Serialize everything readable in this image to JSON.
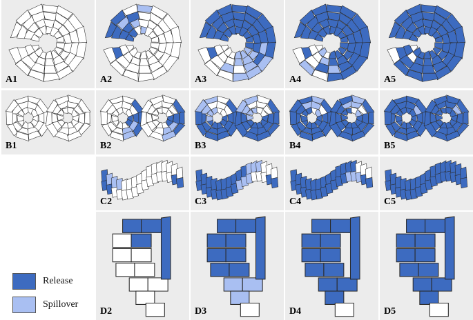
{
  "panels": [
    {
      "label": "A1"
    },
    {
      "label": "A2"
    },
    {
      "label": "A3"
    },
    {
      "label": "A4"
    },
    {
      "label": "A5"
    },
    {
      "label": "B1"
    },
    {
      "label": "B2"
    },
    {
      "label": "B3"
    },
    {
      "label": "B4"
    },
    {
      "label": "B5"
    },
    {
      "label": "C2"
    },
    {
      "label": "C3"
    },
    {
      "label": "C4"
    },
    {
      "label": "C5"
    },
    {
      "label": "D2"
    },
    {
      "label": "D3"
    },
    {
      "label": "D4"
    },
    {
      "label": "D5"
    }
  ],
  "legend": {
    "release": {
      "label": "Release",
      "color": "#3d6bc0"
    },
    "spillover": {
      "label": "Spillover",
      "color": "#a9bff2"
    }
  },
  "colors": {
    "release": "#3d6bc0",
    "spillover": "#a9bff2",
    "none": "#ffffff",
    "background": "#ececec"
  }
}
